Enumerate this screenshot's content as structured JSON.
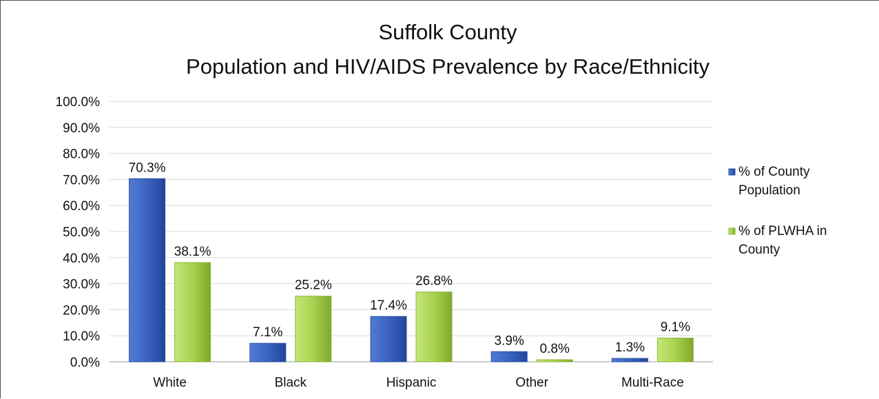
{
  "chart_data": {
    "type": "bar",
    "title": [
      "Suffolk County",
      "Population and HIV/AIDS Prevalence by Race/Ethnicity"
    ],
    "categories": [
      "White",
      "Black",
      "Hispanic",
      "Other",
      "Multi-Race"
    ],
    "series": [
      {
        "name": [
          "% of County",
          "Population"
        ],
        "color": "#3a64c0",
        "values": [
          70.3,
          7.1,
          17.4,
          3.9,
          1.3
        ],
        "labels": [
          "70.3%",
          "7.1%",
          "17.4%",
          "3.9%",
          "1.3%"
        ]
      },
      {
        "name": [
          "% of PLWHA in",
          "County"
        ],
        "color": "#a9d24f",
        "values": [
          38.1,
          25.2,
          26.8,
          0.8,
          9.1
        ],
        "labels": [
          "38.1%",
          "25.2%",
          "26.8%",
          "0.8%",
          "9.1%"
        ]
      }
    ],
    "yticks": [
      "0.0%",
      "10.0%",
      "20.0%",
      "30.0%",
      "40.0%",
      "50.0%",
      "60.0%",
      "70.0%",
      "80.0%",
      "90.0%",
      "100.0%"
    ],
    "ylim": [
      0,
      100
    ],
    "grid": true,
    "legend_position": "right"
  }
}
